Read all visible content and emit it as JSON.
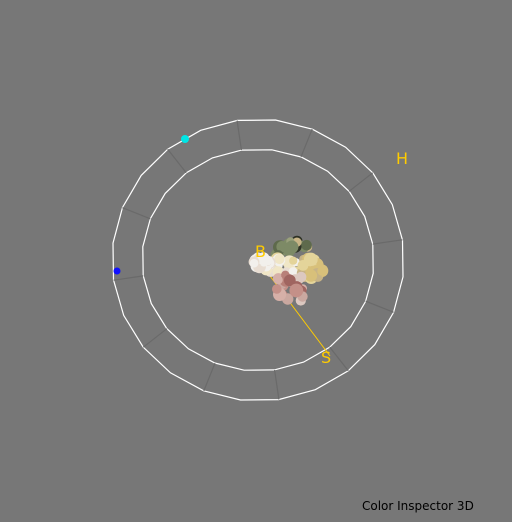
{
  "window": {
    "title": "Color Inspector 3D"
  },
  "axes": {
    "hue_label": "H",
    "brightness_label": "B",
    "saturation_label": "S"
  },
  "colors": {
    "background": "#777777",
    "wheel_line": "#ffffff",
    "wheel_tick": "#6a6a6a",
    "axis_label": "#ffcc00",
    "axis_line": "#ffcc00",
    "marker_cyan": "#00e5e5",
    "marker_blue": "#1010ff"
  },
  "point_cloud": {
    "colors": [
      "#f2f0ec",
      "#e8ddd2",
      "#dcc8c0",
      "#caa8a0",
      "#b88078",
      "#a06560",
      "#e4d49a",
      "#d8c07a",
      "#c8b486",
      "#9aa07c",
      "#7d8a66",
      "#5e6a4c",
      "#2e3226",
      "#f0e6c6",
      "#d6b0a8",
      "#c49088"
    ]
  }
}
